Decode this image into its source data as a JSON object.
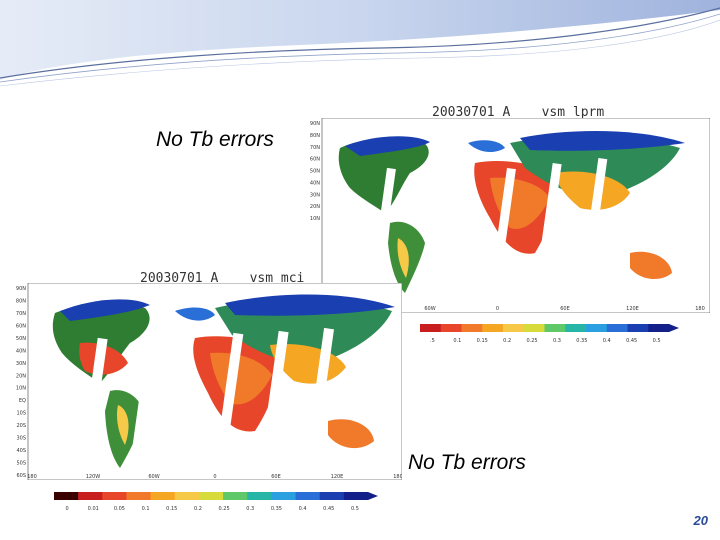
{
  "slide": {
    "page_number": "20",
    "label_top": "No Tb errors",
    "label_bottom": "No Tb errors"
  },
  "maps": {
    "top": {
      "title": "20030701_A    vsm_lprm",
      "lat_ticks": [
        "90N",
        "80N",
        "70N",
        "60N",
        "50N",
        "40N",
        "30N",
        "20N",
        "10N"
      ],
      "lon_ticks": [
        "60W",
        "0",
        "60E",
        "120E",
        "180"
      ],
      "colorbar_ticks": [
        ".5",
        "0.1",
        "0.15",
        "0.2",
        "0.25",
        "0.3",
        "0.35",
        "0.4",
        "0.45",
        "0.5"
      ]
    },
    "bottom": {
      "title": "20030701_A    vsm_mci",
      "lat_ticks": [
        "90N",
        "80N",
        "70N",
        "60N",
        "50N",
        "40N",
        "30N",
        "20N",
        "10N",
        "EQ",
        "10S",
        "20S",
        "30S",
        "40S",
        "50S",
        "60S"
      ],
      "lon_ticks": [
        "180",
        "120W",
        "60W",
        "0",
        "60E",
        "120E",
        "180"
      ],
      "colorbar_ticks": [
        "0",
        "0.01",
        "0.05",
        "0.1",
        "0.15",
        "0.2",
        "0.25",
        "0.3",
        "0.35",
        "0.4",
        "0.45",
        "0.5"
      ]
    }
  },
  "colorbar_colors": [
    "#3a0000",
    "#c81e1e",
    "#e8462a",
    "#f07a2a",
    "#f5a623",
    "#f7c948",
    "#d8dc3a",
    "#5fc96a",
    "#27b5a8",
    "#2aa0e0",
    "#2a6fd8",
    "#1a3fb0",
    "#14208a"
  ]
}
